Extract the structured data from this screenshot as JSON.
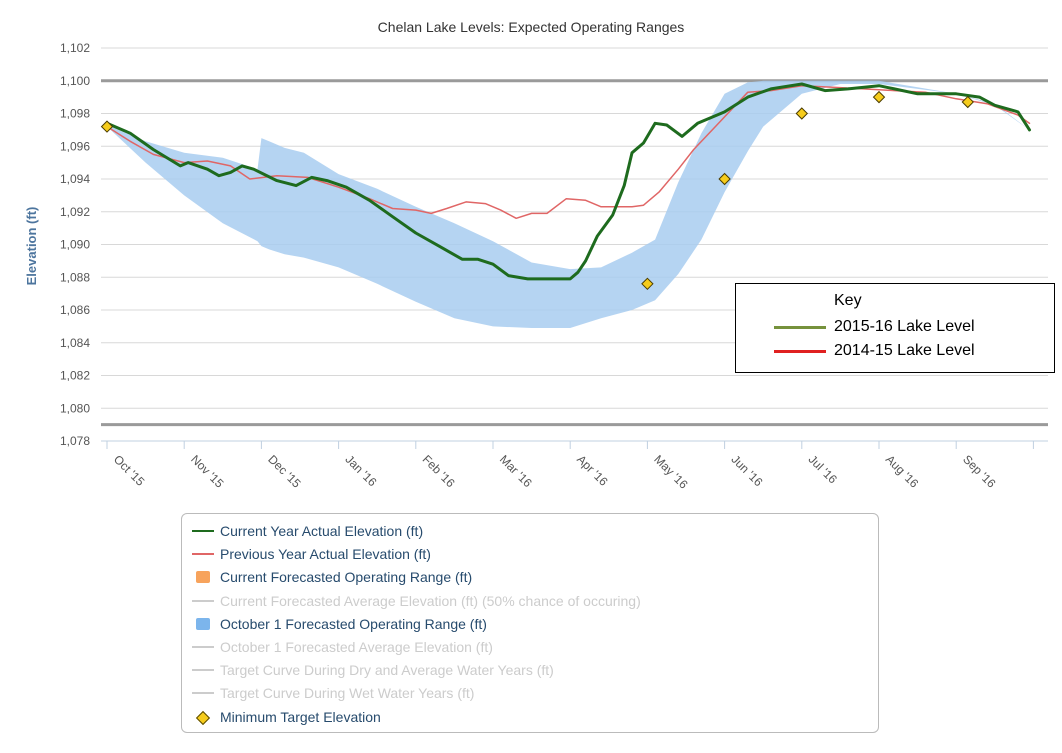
{
  "chart_data": {
    "type": "line",
    "title": "Chelan Lake Levels: Expected Operating Ranges",
    "ylabel": "Elevation (ft)",
    "ylim": [
      1078,
      1102
    ],
    "yticks": [
      "1,078",
      "1,080",
      "1,082",
      "1,084",
      "1,086",
      "1,088",
      "1,090",
      "1,092",
      "1,094",
      "1,096",
      "1,098",
      "1,100",
      "1,102"
    ],
    "xlim": [
      0,
      12
    ],
    "xtick_labels": [
      "Oct '15",
      "Nov '15",
      "Dec '15",
      "Jan '16",
      "Feb '16",
      "Mar '16",
      "Apr '16",
      "May '16",
      "Jun '16",
      "Jul '16",
      "Aug '16",
      "Sep '16"
    ],
    "reference_lines": [
      1100,
      1079
    ],
    "series": [
      {
        "name": "Current Year Actual Elevation (ft)",
        "color": "#1e6b1e",
        "x": [
          0,
          0.3,
          0.6,
          0.95,
          1.05,
          1.3,
          1.45,
          1.6,
          1.75,
          1.9,
          2.2,
          2.45,
          2.65,
          2.85,
          3.1,
          3.4,
          3.7,
          4.0,
          4.3,
          4.6,
          4.8,
          5.0,
          5.2,
          5.45,
          5.6,
          5.9,
          6.0,
          6.1,
          6.2,
          6.35,
          6.55,
          6.7,
          6.8,
          6.95,
          7.1,
          7.25,
          7.45,
          7.65,
          8.0,
          8.3,
          8.6,
          9.0,
          9.3,
          9.6,
          10.0,
          10.2,
          10.5,
          11.0,
          11.3,
          11.5,
          11.8,
          11.95
        ],
        "y": [
          1097.4,
          1096.8,
          1095.8,
          1094.8,
          1095.0,
          1094.6,
          1094.2,
          1094.4,
          1094.8,
          1094.6,
          1093.9,
          1093.6,
          1094.1,
          1093.9,
          1093.5,
          1092.7,
          1091.7,
          1090.7,
          1089.9,
          1089.1,
          1089.1,
          1088.8,
          1088.1,
          1087.9,
          1087.9,
          1087.9,
          1087.9,
          1088.3,
          1089.0,
          1090.5,
          1091.8,
          1093.6,
          1095.6,
          1096.2,
          1097.4,
          1097.3,
          1096.6,
          1097.4,
          1098.1,
          1099.0,
          1099.5,
          1099.8,
          1099.4,
          1099.5,
          1099.7,
          1099.5,
          1099.2,
          1099.2,
          1099.0,
          1098.5,
          1098.1,
          1097.0
        ]
      },
      {
        "name": "Previous Year Actual Elevation (ft)",
        "color": "#e06666",
        "x": [
          0,
          0.3,
          0.6,
          1.0,
          1.3,
          1.6,
          1.85,
          2.2,
          2.6,
          3.0,
          3.4,
          3.7,
          4.0,
          4.2,
          4.4,
          4.65,
          4.9,
          5.1,
          5.3,
          5.5,
          5.7,
          5.95,
          6.2,
          6.4,
          6.6,
          6.8,
          6.95,
          7.15,
          7.4,
          7.6,
          7.9,
          8.3,
          8.6,
          9.0,
          9.4,
          9.8,
          10.2,
          10.6,
          11.0,
          11.4,
          11.8,
          11.95
        ],
        "y": [
          1097.2,
          1096.3,
          1095.5,
          1095.0,
          1095.1,
          1094.8,
          1094.0,
          1094.2,
          1094.1,
          1093.5,
          1092.8,
          1092.2,
          1092.1,
          1091.9,
          1092.2,
          1092.6,
          1092.5,
          1092.1,
          1091.6,
          1091.9,
          1091.9,
          1092.8,
          1092.7,
          1092.3,
          1092.3,
          1092.3,
          1092.4,
          1093.2,
          1094.6,
          1095.8,
          1097.3,
          1099.3,
          1099.4,
          1099.7,
          1099.6,
          1099.5,
          1099.4,
          1099.3,
          1098.9,
          1098.6,
          1097.9,
          1097.4
        ]
      }
    ],
    "band": {
      "name": "October 1 Forecasted Operating Range (ft)",
      "color": "#a8ccf0",
      "x": [
        0,
        0.5,
        1.0,
        1.5,
        1.95,
        2.0,
        2.1,
        2.3,
        2.55,
        3.0,
        3.5,
        4.0,
        4.5,
        5.0,
        5.5,
        6.0,
        6.4,
        6.8,
        7.1,
        7.4,
        7.7,
        8.0,
        8.3,
        8.5,
        9.0,
        9.5,
        10.0,
        10.5,
        11.0,
        11.5,
        11.95
      ],
      "upper": [
        1097.3,
        1096.3,
        1095.6,
        1095.3,
        1094.6,
        1096.5,
        1096.3,
        1095.9,
        1095.6,
        1094.3,
        1093.4,
        1092.3,
        1091.3,
        1090.2,
        1088.9,
        1088.5,
        1088.6,
        1089.5,
        1090.3,
        1093.8,
        1096.8,
        1099.2,
        1099.9,
        1100.0,
        1100.0,
        1100.0,
        1100.0,
        1099.6,
        1099.2,
        1098.6,
        1097.0
      ],
      "lower": [
        1097.2,
        1095.0,
        1093.0,
        1091.3,
        1090.2,
        1089.9,
        1089.7,
        1089.4,
        1089.2,
        1088.6,
        1087.6,
        1086.5,
        1085.5,
        1085.0,
        1084.9,
        1084.9,
        1085.5,
        1086.0,
        1086.6,
        1088.2,
        1090.3,
        1093.2,
        1095.7,
        1097.2,
        1099.2,
        1099.8,
        1099.8,
        1099.5,
        1099.2,
        1098.5,
        1097.0
      ]
    },
    "markers": {
      "name": "Minimum Target Elevation",
      "color": "#f6cc1c",
      "x": [
        0,
        7,
        8,
        9,
        10,
        11.15
      ],
      "y": [
        1097.2,
        1087.6,
        1094.0,
        1098.0,
        1099.0,
        1098.7
      ]
    },
    "legend": [
      {
        "label": "Current Year Actual Elevation (ft)",
        "kind": "line",
        "color": "#1e6b1e",
        "hidden": false
      },
      {
        "label": "Previous Year Actual Elevation (ft)",
        "kind": "line",
        "color": "#e06666",
        "hidden": false
      },
      {
        "label": "Current Forecasted Operating Range (ft)",
        "kind": "rect",
        "color": "#f7a35c",
        "hidden": false
      },
      {
        "label": "Current Forecasted Average Elevation (ft) (50% chance of occuring)",
        "kind": "line",
        "color": "#cccccc",
        "hidden": true
      },
      {
        "label": "October 1 Forecasted Operating Range (ft)",
        "kind": "rect",
        "color": "#7cb5ec",
        "hidden": false
      },
      {
        "label": "October 1 Forecasted Average Elevation (ft)",
        "kind": "line",
        "color": "#cccccc",
        "hidden": true
      },
      {
        "label": "Target Curve During Dry and Average Water Years (ft)",
        "kind": "line",
        "color": "#cccccc",
        "hidden": true
      },
      {
        "label": "Target Curve During Wet Water Years (ft)",
        "kind": "line",
        "color": "#cccccc",
        "hidden": true
      },
      {
        "label": "Minimum Target Elevation",
        "kind": "diamond",
        "color": "#f6cc1c",
        "hidden": false
      }
    ],
    "key": {
      "title": "Key",
      "entries": [
        {
          "label": "2015-16 Lake Level",
          "color": "#76923c"
        },
        {
          "label": "2014-15 Lake Level",
          "color": "#e02020"
        }
      ]
    }
  }
}
